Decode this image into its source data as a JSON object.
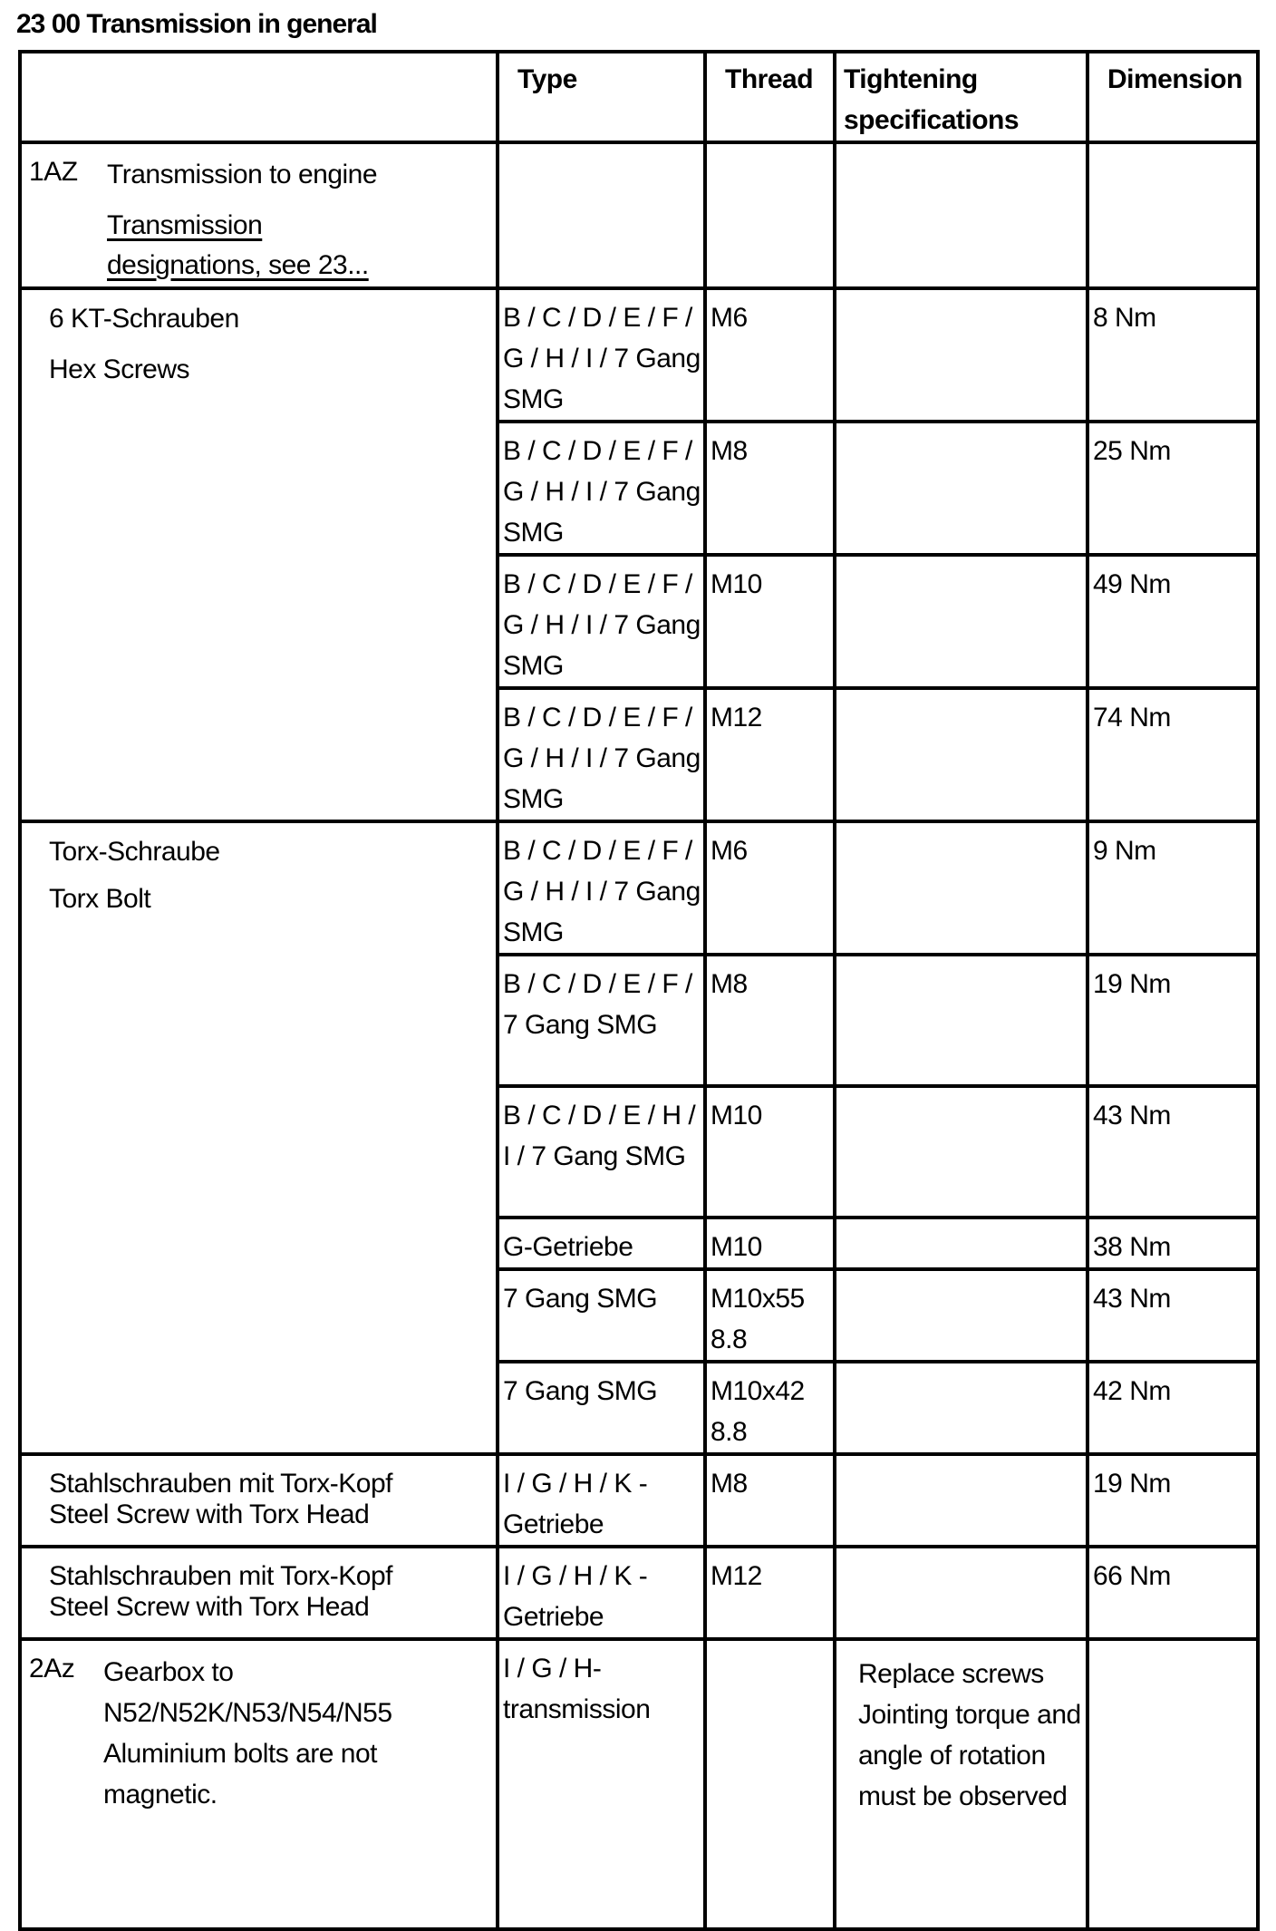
{
  "title": "23 00 Transmission in general",
  "columns": [
    "",
    "Type",
    "Thread",
    "Tightening specifications",
    "Dimension"
  ],
  "section_1": {
    "code": "1AZ",
    "label": "Transmission to engine",
    "link": "Transmission designations, see 23..."
  },
  "hex_group": {
    "label_de": "6 KT-Schrauben",
    "label_en": "Hex Screws",
    "rows": [
      {
        "type": "B / C / D / E / F / G / H / I / 7 Gang SMG",
        "thread": "M6",
        "spec": "",
        "dimension": "8 Nm"
      },
      {
        "type": "B / C / D / E / F / G / H / I / 7 Gang SMG",
        "thread": "M8",
        "spec": "",
        "dimension": "25 Nm"
      },
      {
        "type": "B / C / D / E / F / G / H / I / 7 Gang SMG",
        "thread": "M10",
        "spec": "",
        "dimension": "49 Nm"
      },
      {
        "type": "B / C / D / E / F / G / H / I / 7 Gang SMG",
        "thread": "M12",
        "spec": "",
        "dimension": "74 Nm"
      }
    ]
  },
  "torx_group": {
    "label_de": "Torx-Schraube",
    "label_en": "Torx Bolt",
    "rows": [
      {
        "type": "B / C / D / E / F / G / H / I / 7 Gang SMG",
        "thread": "M6",
        "spec": "",
        "dimension": "9 Nm"
      },
      {
        "type": "B / C / D / E / F / 7 Gang SMG",
        "thread": "M8",
        "spec": "",
        "dimension": "19 Nm"
      },
      {
        "type": "B / C / D / E / H / I / 7 Gang SMG",
        "thread": "M10",
        "spec": "",
        "dimension": "43 Nm"
      },
      {
        "type": "G-Getriebe",
        "thread": "M10",
        "spec": "",
        "dimension": "38 Nm"
      },
      {
        "type": "7 Gang SMG",
        "thread": "M10x55 8.8",
        "spec": "",
        "dimension": "43 Nm"
      },
      {
        "type": "7 Gang SMG",
        "thread": "M10x42 8.8",
        "spec": "",
        "dimension": "42 Nm"
      }
    ]
  },
  "steel_rows": [
    {
      "label_de": "Stahlschrauben mit Torx-Kopf",
      "label_en": "Steel Screw with Torx Head",
      "type": "I / G / H / K - Getriebe",
      "thread": "M8",
      "spec": "",
      "dimension": "19 Nm"
    },
    {
      "label_de": "Stahlschrauben mit Torx-Kopf",
      "label_en": "Steel Screw with Torx Head",
      "type": "I / G / H / K - Getriebe",
      "thread": "M12",
      "spec": "",
      "dimension": "66 Nm"
    }
  ],
  "section_2": {
    "code": "2Az",
    "label": "Gearbox to N52/N52K/N53/N54/N55 Aluminium bolts are not magnetic.",
    "type": "I / G / H-transmission",
    "thread": "",
    "spec": "Replace screws Jointing torque and angle of rotation must be observed",
    "dimension": ""
  }
}
